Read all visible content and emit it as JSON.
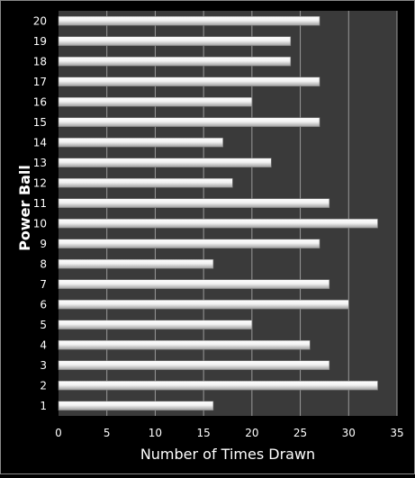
{
  "chart_data": {
    "type": "bar",
    "orientation": "horizontal",
    "xlabel": "Number of Times Drawn",
    "ylabel": "Power Ball",
    "xlim": [
      0,
      35
    ],
    "xticks": [
      0,
      5,
      10,
      15,
      20,
      25,
      30,
      35
    ],
    "categories": [
      "1",
      "2",
      "3",
      "4",
      "5",
      "6",
      "7",
      "8",
      "9",
      "10",
      "11",
      "12",
      "13",
      "14",
      "15",
      "16",
      "17",
      "18",
      "19",
      "20"
    ],
    "values": [
      16,
      33,
      28,
      26,
      20,
      30,
      28,
      16,
      27,
      33,
      28,
      18,
      22,
      17,
      27,
      20,
      27,
      24,
      24,
      27
    ],
    "grid": "vertical",
    "legend": "none"
  },
  "colors": {
    "background": "#000000",
    "plot_area": "#3a3a3a",
    "gridline": "#9a9a9a",
    "bar_light": "#ffffff",
    "bar_dark": "#a8a8a8",
    "text": "#ffffff"
  }
}
